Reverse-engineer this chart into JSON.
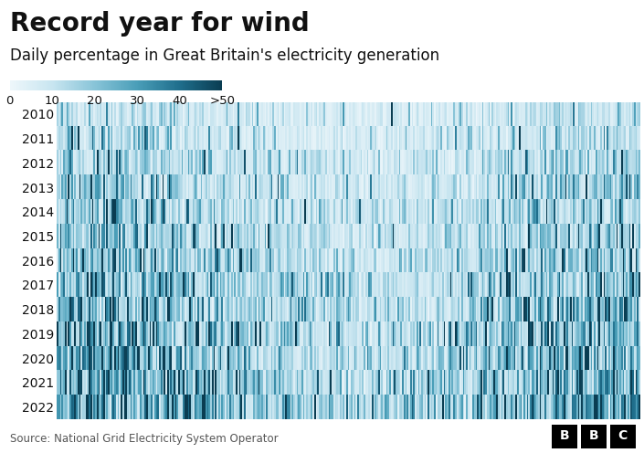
{
  "title": "Record year for wind",
  "subtitle": "Daily percentage in Great Britain's electricity generation",
  "colorbar_labels": [
    "0",
    "10",
    "20",
    "30",
    "40",
    ">50"
  ],
  "years": [
    2010,
    2011,
    2012,
    2013,
    2014,
    2015,
    2016,
    2017,
    2018,
    2019,
    2020,
    2021,
    2022
  ],
  "source": "Source: National Grid Electricity System Operator",
  "vmin": 0,
  "vmax": 50,
  "background_color": "#ffffff",
  "title_fontsize": 20,
  "subtitle_fontsize": 12,
  "year_label_fontsize": 10,
  "seed": 42
}
